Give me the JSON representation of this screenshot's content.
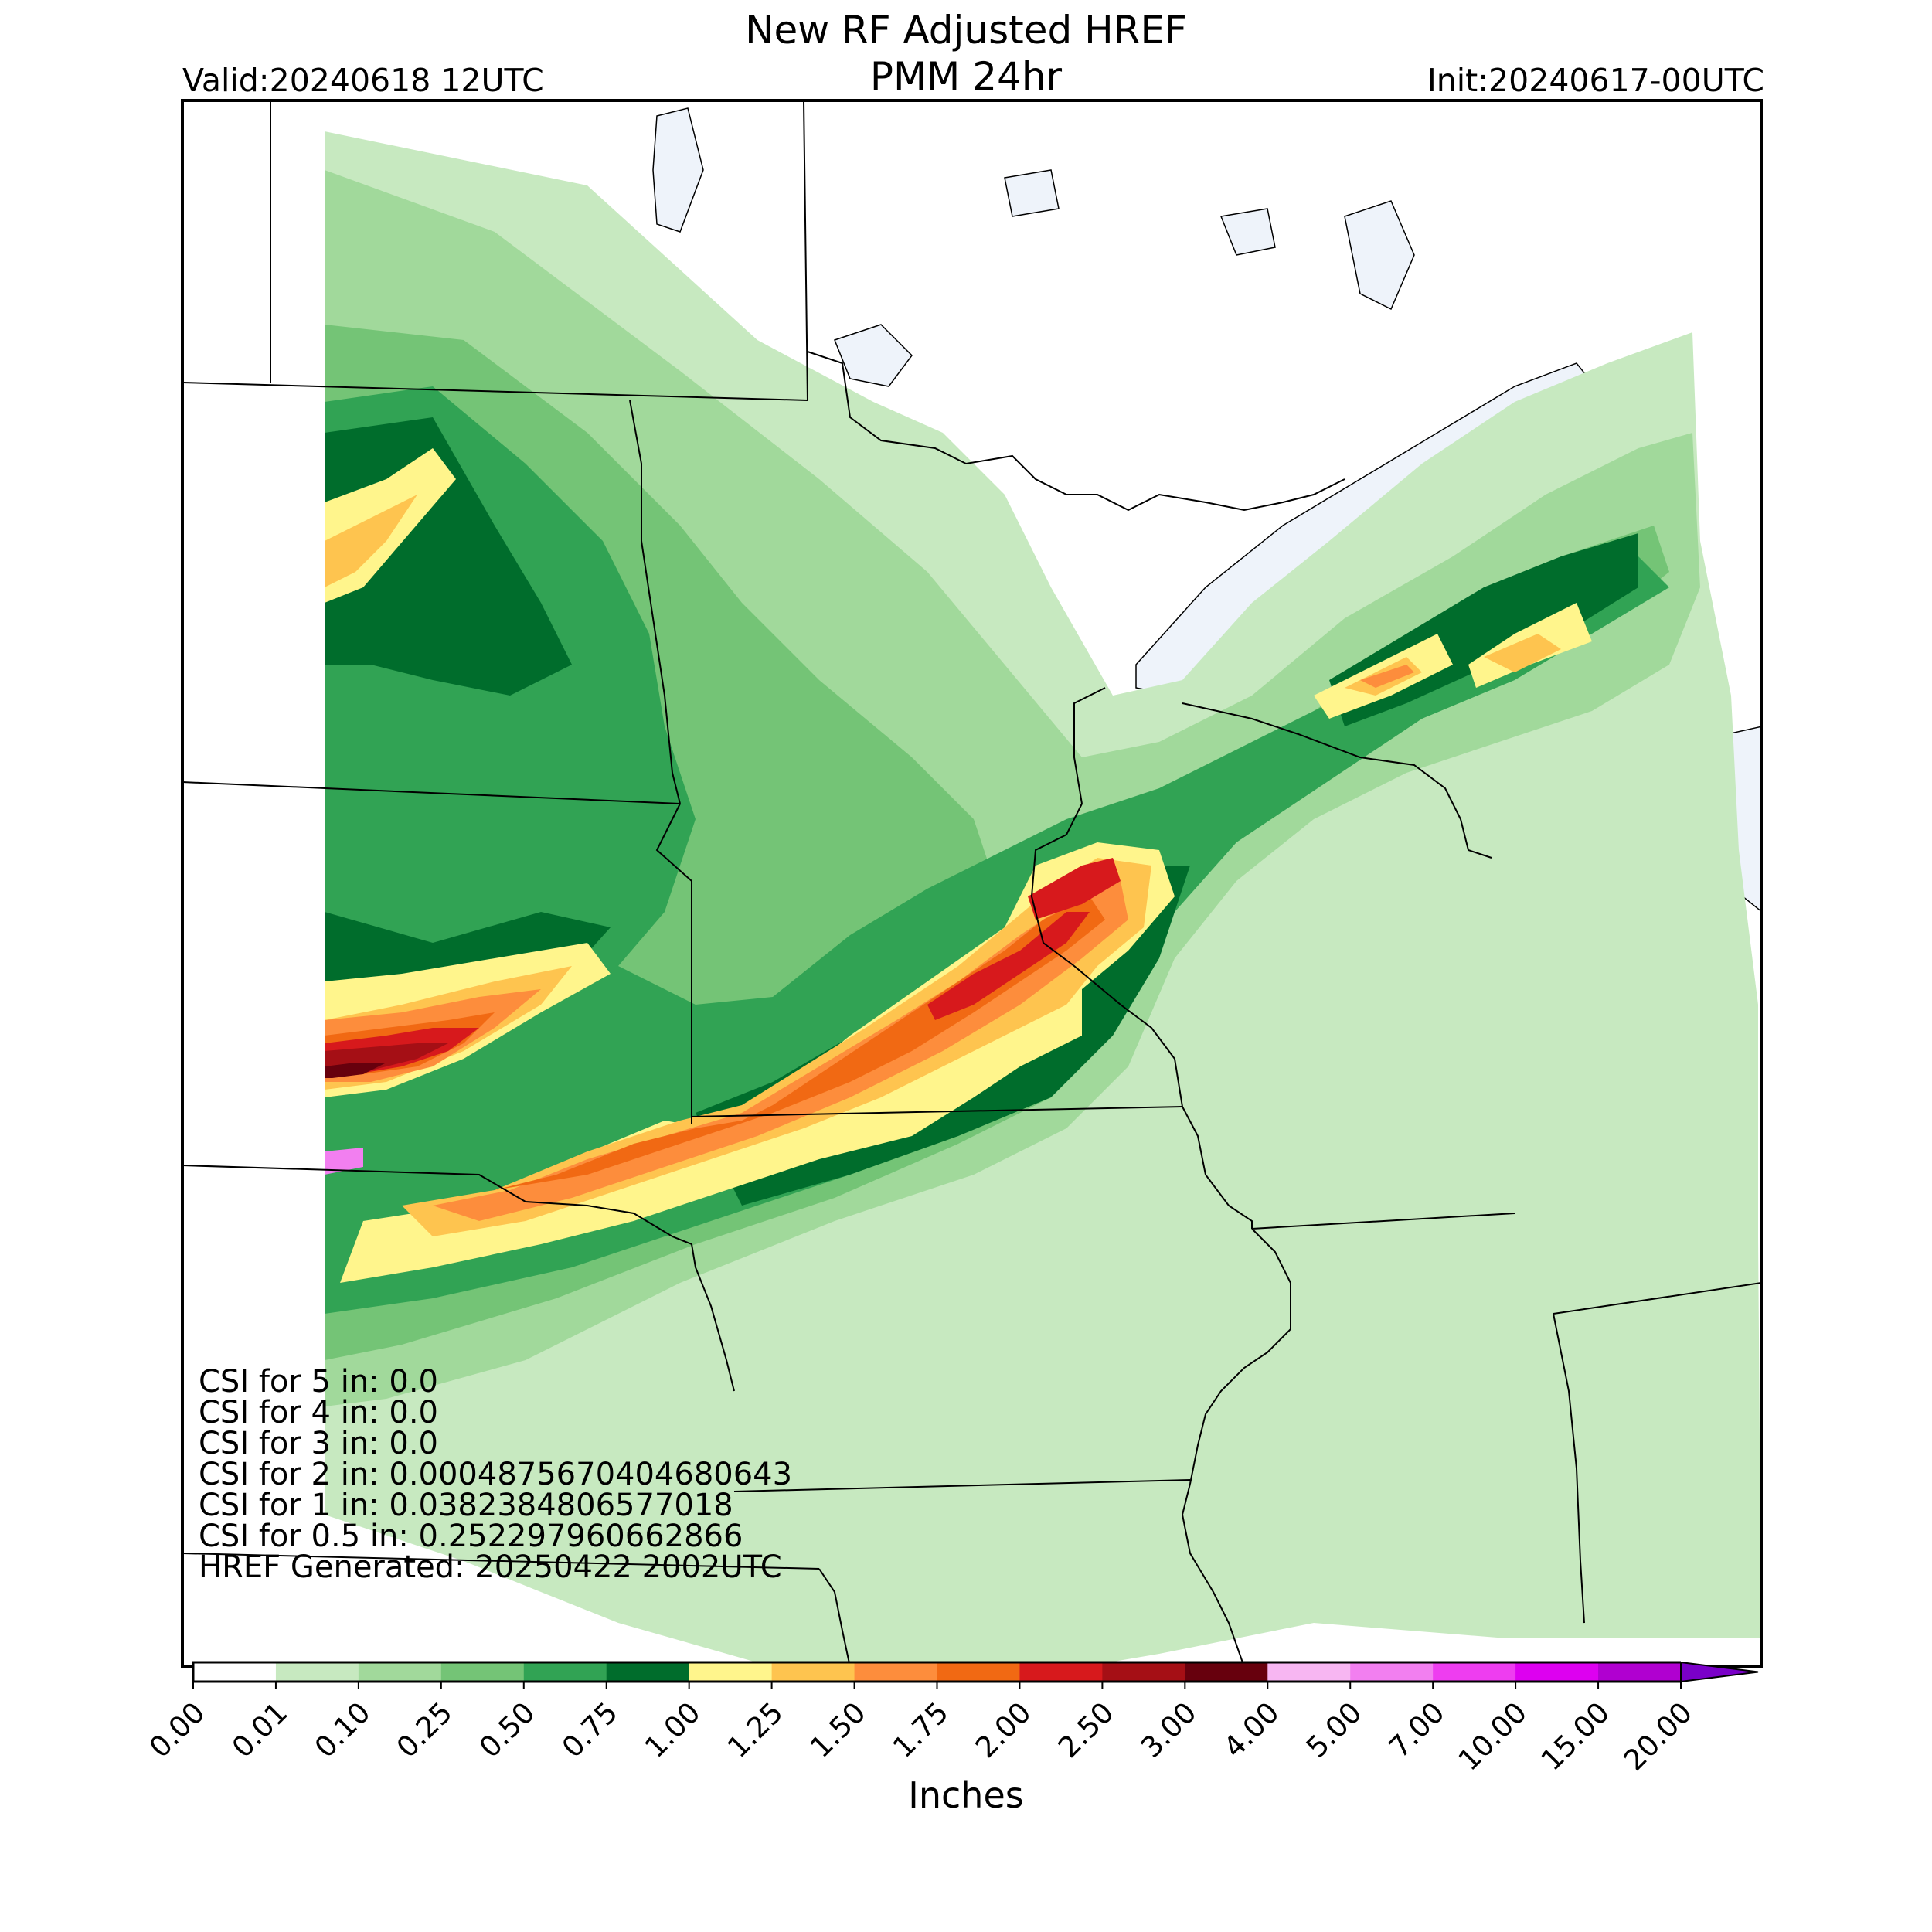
{
  "header": {
    "title_line1": "New RF Adjusted HREF",
    "title_line2": "PMM 24hr",
    "valid": "Valid:20240618 12UTC",
    "init": "Init:20240617-00UTC"
  },
  "stats": [
    "CSI for 5 in: 0.0",
    "CSI for 4 in: 0.0",
    "CSI for 3 in: 0.0",
    "CSI for 2 in: 0.0004875670404680643",
    "CSI for 1 in: 0.0382384806577018",
    "CSI for 0.5 in: 0.252297960662866",
    "HREF Generated: 20250422 2002UTC"
  ],
  "colorbar": {
    "units": "Inches",
    "levels": [
      "0.00",
      "0.01",
      "0.10",
      "0.25",
      "0.50",
      "0.75",
      "1.00",
      "1.25",
      "1.50",
      "1.75",
      "2.00",
      "2.50",
      "3.00",
      "4.00",
      "5.00",
      "7.00",
      "10.00",
      "15.00",
      "20.00"
    ],
    "colors": [
      "#ffffff",
      "#c7e9c0",
      "#a1d99b",
      "#74c476",
      "#31a354",
      "#006d2c",
      "#fff58c",
      "#fec44f",
      "#fd8d3c",
      "#f16913",
      "#d7191c",
      "#a50f15",
      "#67000d",
      "#f7b6f2",
      "#f27ff0",
      "#ee3df0",
      "#dd00f0",
      "#b000d0"
    ],
    "extend_color": "#7a00c8"
  },
  "map": {
    "water_color": "#eef3fa",
    "border_color": "#000000"
  }
}
